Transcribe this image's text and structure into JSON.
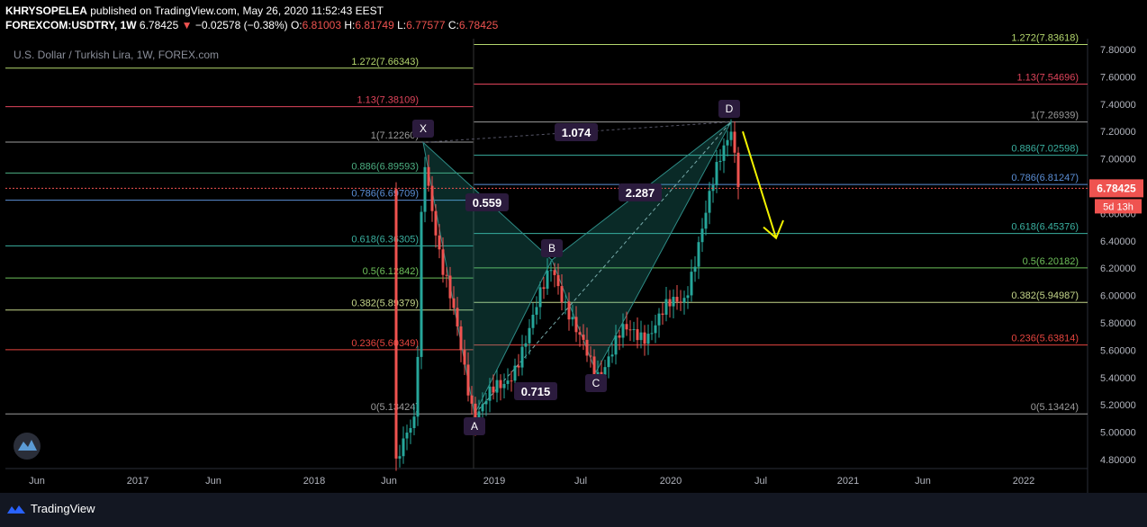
{
  "header": {
    "publisher": "KHRYSOPELEA",
    "published_text": "published on TradingView.com, May 26, 2020 11:52:43 EEST",
    "symbol": "FOREXCOM:USDTRY, 1W",
    "last": "6.78425",
    "change": "−0.02578 (−0.38%)",
    "o_label": "O:",
    "o": "6.81003",
    "h_label": "H:",
    "h": "6.81749",
    "l_label": "L:",
    "l": "6.77577",
    "c_label": "C:",
    "c": "6.78425"
  },
  "footer": {
    "brand": "TradingView"
  },
  "chart_data": {
    "type": "candlestick",
    "title": "U.S. Dollar / Turkish Lira, 1W, FOREX.com",
    "ylim": [
      4.7,
      7.9
    ],
    "y_ticks": [
      "7.80000",
      "7.60000",
      "7.40000",
      "7.20000",
      "7.00000",
      "6.80000",
      "6.60000",
      "6.40000",
      "6.20000",
      "6.00000",
      "5.80000",
      "5.60000",
      "5.40000",
      "5.20000",
      "5.00000",
      "4.80000"
    ],
    "x_ticks": [
      "Jun",
      "2017",
      "Jun",
      "2018",
      "Jun",
      "2019",
      "Jul",
      "2020",
      "Jul",
      "2021",
      "Jun",
      "2022"
    ],
    "last_price_label": "6.78425",
    "countdown_label": "5d 13h",
    "fib_left": [
      {
        "label": "1.272(7.66343)",
        "value": 7.66343,
        "color": "#b4d76d"
      },
      {
        "label": "1.13(7.38109)",
        "value": 7.38109,
        "color": "#e0445b"
      },
      {
        "label": "1(7.12260)",
        "value": 7.1226,
        "color": "#9b9b9b"
      },
      {
        "label": "0.886(6.89593)",
        "value": 6.89593,
        "color": "#4caf82"
      },
      {
        "label": "0.786(6.69709)",
        "value": 6.69709,
        "color": "#5b8fd6"
      },
      {
        "label": "0.618(6.36305)",
        "value": 6.36305,
        "color": "#3ab0a0"
      },
      {
        "label": "0.5(6.12842)",
        "value": 6.12842,
        "color": "#6ec05a"
      },
      {
        "label": "0.382(5.89379)",
        "value": 5.89379,
        "color": "#c5d68a"
      },
      {
        "label": "0.236(5.60349)",
        "value": 5.60349,
        "color": "#e6453f"
      },
      {
        "label": "0(5.13424)",
        "value": 5.13424,
        "color": "#9b9b9b"
      }
    ],
    "fib_right": [
      {
        "label": "1.272(7.83618)",
        "value": 7.83618,
        "color": "#b4d76d"
      },
      {
        "label": "1.13(7.54696)",
        "value": 7.54696,
        "color": "#e0445b"
      },
      {
        "label": "1(7.26939)",
        "value": 7.26939,
        "color": "#9b9b9b"
      },
      {
        "label": "0.886(7.02598)",
        "value": 7.02598,
        "color": "#3ab0a0"
      },
      {
        "label": "0.786(6.81247)",
        "value": 6.81247,
        "color": "#5b8fd6"
      },
      {
        "label": "0.618(6.45376)",
        "value": 6.45376,
        "color": "#3ab0a0"
      },
      {
        "label": "0.5(6.20182)",
        "value": 6.20182,
        "color": "#6ec05a"
      },
      {
        "label": "0.382(5.94987)",
        "value": 5.94987,
        "color": "#c5d68a"
      },
      {
        "label": "0.236(5.63814)",
        "value": 5.63814,
        "color": "#e6453f"
      },
      {
        "label": "0(5.13424)",
        "value": 5.13424,
        "color": "#9b9b9b"
      }
    ],
    "pattern_points": [
      {
        "name": "X",
        "value": 7.12
      },
      {
        "name": "A",
        "value": 5.13
      },
      {
        "name": "B",
        "value": 6.26
      },
      {
        "name": "C",
        "value": 5.44
      },
      {
        "name": "D",
        "value": 7.27
      }
    ],
    "ratios": [
      "0.559",
      "0.715",
      "2.287",
      "1.074"
    ],
    "colors": {
      "up": "#26a69a",
      "down": "#ef5350",
      "pattern": "#2e8b85",
      "arrow": "#f2f200",
      "price_line": "#ef5350"
    }
  }
}
